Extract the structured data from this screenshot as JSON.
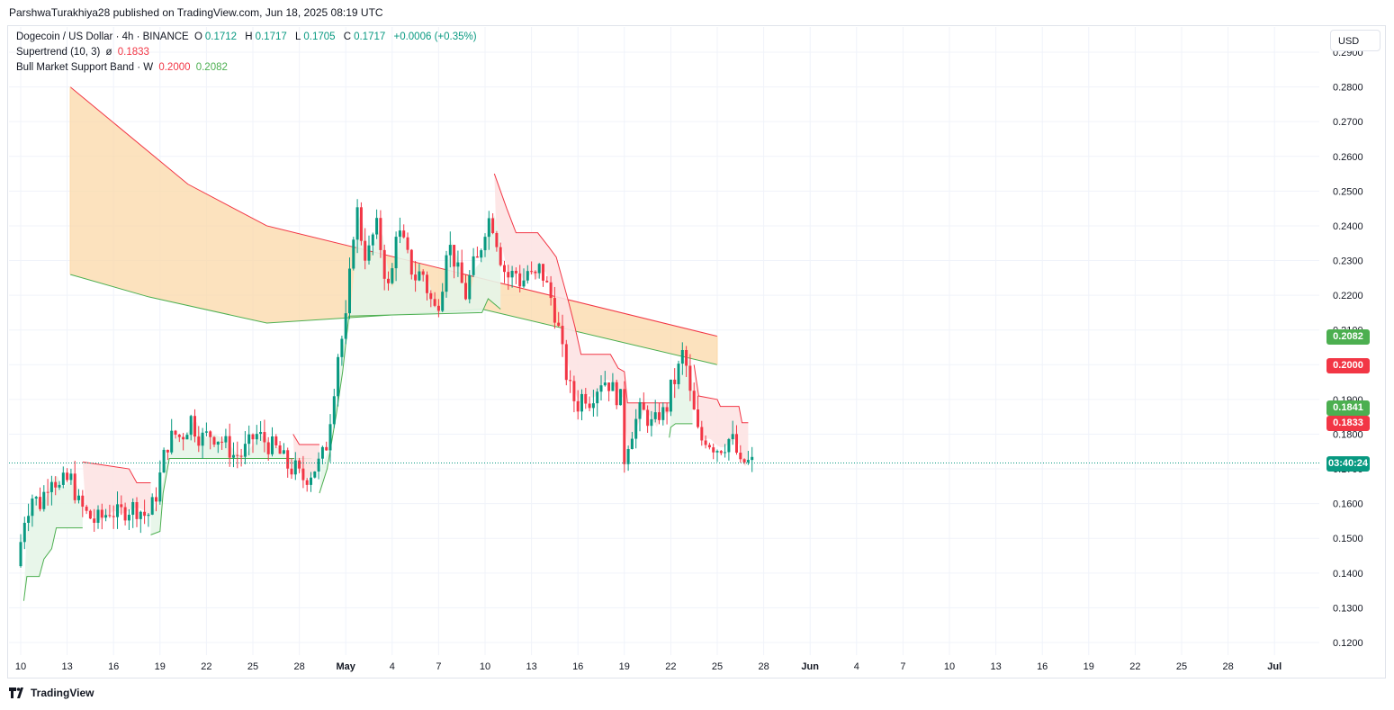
{
  "publisher": "ParshwaTurakhiya28 published on TradingView.com, Jun 18, 2025 08:19 UTC",
  "legend": {
    "symbol": "Dogecoin / US Dollar · 4h · BINANCE",
    "o_label": "O",
    "o": "0.1712",
    "h_label": "H",
    "h": "0.1717",
    "l_label": "L",
    "l": "0.1705",
    "c_label": "C",
    "c": "0.1717",
    "change": "+0.0006 (+0.35%)",
    "supertrend_name": "Supertrend (10, 3)",
    "supertrend_icon": "ø",
    "supertrend_value": "0.1833",
    "bmsb_name": "Bull Market Support Band · W",
    "bmsb_value1": "0.2000",
    "bmsb_value2": "0.2082"
  },
  "currency": "USD",
  "brand": "TradingView",
  "price_labels": {
    "bmsb_upper": "0.2082",
    "bmsb_lower": "0.2000",
    "supertrend_upper": "0.1841",
    "supertrend_lower": "0.1833",
    "countdown": "03:40:24"
  },
  "colors": {
    "up": "#089981",
    "down": "#f23645",
    "band_green": "#4caf50",
    "band_red": "#f23645",
    "band_fill": "#fbd8a8",
    "st_up_fill": "#e6f5e8",
    "st_down_fill": "#fde3e3"
  },
  "chart_data": {
    "type": "candlestick",
    "symbol": "Dogecoin / US Dollar",
    "interval": "4h",
    "exchange": "BINANCE",
    "last_price": 0.1717,
    "ylim": [
      0.115,
      0.293
    ],
    "y_ticks": [
      "0.1200",
      "0.1300",
      "0.1400",
      "0.1500",
      "0.1600",
      "0.1700",
      "0.1800",
      "0.1900",
      "0.2000",
      "0.2100",
      "0.2200",
      "0.2300",
      "0.2400",
      "0.2500",
      "0.2600",
      "0.2700",
      "0.2800",
      "0.2900"
    ],
    "x_ticks": [
      "10",
      "13",
      "16",
      "19",
      "22",
      "25",
      "28",
      "May",
      "4",
      "7",
      "10",
      "13",
      "16",
      "19",
      "22",
      "25",
      "28",
      "Jun",
      "4",
      "7",
      "10",
      "13",
      "16",
      "19",
      "22",
      "25",
      "28",
      "Jul"
    ],
    "bull_market_support_band": {
      "upper": [
        [
          0.28,
          3.2
        ],
        [
          0.252,
          10.8
        ],
        [
          0.24,
          15.9
        ],
        [
          0.2082,
          45.0
        ]
      ],
      "lower": [
        [
          0.226,
          3.2
        ],
        [
          0.2195,
          8.3
        ],
        [
          0.212,
          15.9
        ],
        [
          0.216,
          29.8
        ],
        [
          0.2,
          45.0
        ]
      ]
    },
    "price_path": [
      [
        0.0,
        0.142
      ],
      [
        0.5,
        0.156
      ],
      [
        1.0,
        0.162
      ],
      [
        1.5,
        0.16
      ],
      [
        2.0,
        0.166
      ],
      [
        2.3,
        0.169
      ],
      [
        2.7,
        0.164
      ],
      [
        3.0,
        0.166
      ],
      [
        3.5,
        0.167
      ],
      [
        4.0,
        0.16
      ],
      [
        4.5,
        0.157
      ],
      [
        5.0,
        0.155
      ],
      [
        5.5,
        0.156
      ],
      [
        6.0,
        0.158
      ],
      [
        6.5,
        0.157
      ],
      [
        7.0,
        0.158
      ],
      [
        7.5,
        0.159
      ],
      [
        8.0,
        0.158
      ],
      [
        8.4,
        0.156
      ],
      [
        8.8,
        0.16
      ],
      [
        9.1,
        0.164
      ],
      [
        9.4,
        0.172
      ],
      [
        9.8,
        0.178
      ],
      [
        10.2,
        0.18
      ],
      [
        10.6,
        0.179
      ],
      [
        11.0,
        0.182
      ],
      [
        11.3,
        0.185
      ],
      [
        11.6,
        0.18
      ],
      [
        12.0,
        0.179
      ],
      [
        12.5,
        0.18
      ],
      [
        13.0,
        0.179
      ],
      [
        13.5,
        0.177
      ],
      [
        14.0,
        0.174
      ],
      [
        14.5,
        0.174
      ],
      [
        15.0,
        0.177
      ],
      [
        15.4,
        0.18
      ],
      [
        15.8,
        0.179
      ],
      [
        16.2,
        0.177
      ],
      [
        16.7,
        0.176
      ],
      [
        17.2,
        0.173
      ],
      [
        17.6,
        0.17
      ],
      [
        18.0,
        0.17
      ],
      [
        18.4,
        0.167
      ],
      [
        18.8,
        0.168
      ],
      [
        19.2,
        0.17
      ],
      [
        19.6,
        0.172
      ],
      [
        20.0,
        0.177
      ],
      [
        20.4,
        0.19
      ],
      [
        20.8,
        0.205
      ],
      [
        21.2,
        0.21
      ],
      [
        21.6,
        0.23
      ],
      [
        21.9,
        0.247
      ],
      [
        22.2,
        0.238
      ],
      [
        22.6,
        0.23
      ],
      [
        23.0,
        0.237
      ],
      [
        23.3,
        0.24
      ],
      [
        23.7,
        0.228
      ],
      [
        24.1,
        0.22
      ],
      [
        24.5,
        0.239
      ],
      [
        24.9,
        0.236
      ],
      [
        25.3,
        0.23
      ],
      [
        25.7,
        0.225
      ],
      [
        26.2,
        0.227
      ],
      [
        26.6,
        0.22
      ],
      [
        27.0,
        0.216
      ],
      [
        27.4,
        0.22
      ],
      [
        27.8,
        0.236
      ],
      [
        28.2,
        0.231
      ],
      [
        28.6,
        0.225
      ],
      [
        29.0,
        0.22
      ],
      [
        29.4,
        0.228
      ],
      [
        29.8,
        0.23
      ],
      [
        30.2,
        0.239
      ],
      [
        30.6,
        0.243
      ],
      [
        31.0,
        0.236
      ],
      [
        31.4,
        0.228
      ],
      [
        31.8,
        0.225
      ],
      [
        32.2,
        0.227
      ],
      [
        32.6,
        0.223
      ],
      [
        33.0,
        0.227
      ],
      [
        33.4,
        0.224
      ],
      [
        33.8,
        0.228
      ],
      [
        34.2,
        0.223
      ],
      [
        34.6,
        0.218
      ],
      [
        35.0,
        0.21
      ],
      [
        35.4,
        0.199
      ],
      [
        35.8,
        0.192
      ],
      [
        36.2,
        0.188
      ],
      [
        36.6,
        0.192
      ],
      [
        37.0,
        0.19
      ],
      [
        37.4,
        0.193
      ],
      [
        37.8,
        0.196
      ],
      [
        38.2,
        0.195
      ],
      [
        38.6,
        0.192
      ],
      [
        39.0,
        0.19
      ],
      [
        39.2,
        0.172
      ],
      [
        39.5,
        0.178
      ],
      [
        39.9,
        0.183
      ],
      [
        40.3,
        0.187
      ],
      [
        40.7,
        0.185
      ],
      [
        41.1,
        0.182
      ],
      [
        41.5,
        0.186
      ],
      [
        41.9,
        0.186
      ],
      [
        42.3,
        0.194
      ],
      [
        42.7,
        0.197
      ],
      [
        42.9,
        0.204
      ],
      [
        43.2,
        0.201
      ],
      [
        43.5,
        0.191
      ],
      [
        43.8,
        0.185
      ],
      [
        44.1,
        0.178
      ],
      [
        44.5,
        0.179
      ],
      [
        44.9,
        0.177
      ],
      [
        45.3,
        0.176
      ],
      [
        45.7,
        0.177
      ],
      [
        46.1,
        0.179
      ],
      [
        46.4,
        0.177
      ],
      [
        46.7,
        0.17
      ],
      [
        47.0,
        0.172
      ],
      [
        47.3,
        0.1717
      ]
    ],
    "supertrend": {
      "current_value": 0.1833,
      "segments": [
        {
          "trend": "up",
          "points": [
            [
              0.2,
              0.132
            ],
            [
              0.4,
              0.139
            ],
            [
              1.2,
              0.139
            ],
            [
              1.5,
              0.144
            ],
            [
              2.0,
              0.147
            ],
            [
              2.3,
              0.153
            ],
            [
              4.0,
              0.153
            ]
          ]
        },
        {
          "trend": "down",
          "points": [
            [
              4.0,
              0.172
            ],
            [
              7.0,
              0.17
            ],
            [
              7.5,
              0.166
            ],
            [
              8.4,
              0.166
            ]
          ]
        },
        {
          "trend": "up",
          "points": [
            [
              8.4,
              0.151
            ],
            [
              9.0,
              0.152
            ],
            [
              9.2,
              0.163
            ],
            [
              9.6,
              0.173
            ],
            [
              14.0,
              0.173
            ],
            [
              17.5,
              0.173
            ],
            [
              18.8,
              0.173
            ]
          ]
        },
        {
          "trend": "down",
          "points": [
            [
              17.6,
              0.18
            ],
            [
              18.0,
              0.177
            ],
            [
              19.3,
              0.177
            ]
          ]
        },
        {
          "trend": "up",
          "points": [
            [
              19.3,
              0.163
            ],
            [
              19.8,
              0.17
            ],
            [
              20.4,
              0.186
            ],
            [
              20.8,
              0.198
            ],
            [
              21.2,
              0.214
            ],
            [
              29.8,
              0.215
            ],
            [
              30.2,
              0.219
            ],
            [
              31.0,
              0.216
            ]
          ]
        },
        {
          "trend": "down",
          "points": [
            [
              30.6,
              0.255
            ],
            [
              31.4,
              0.245
            ],
            [
              32.0,
              0.238
            ],
            [
              33.4,
              0.238
            ],
            [
              34.1,
              0.234
            ],
            [
              34.6,
              0.231
            ],
            [
              35.4,
              0.218
            ],
            [
              35.8,
              0.211
            ],
            [
              36.2,
              0.203
            ],
            [
              38.1,
              0.203
            ],
            [
              38.6,
              0.199
            ],
            [
              39.0,
              0.198
            ],
            [
              39.2,
              0.189
            ],
            [
              41.9,
              0.189
            ]
          ]
        },
        {
          "trend": "up",
          "points": [
            [
              41.9,
              0.179
            ],
            [
              42.0,
              0.182
            ],
            [
              42.3,
              0.183
            ],
            [
              43.4,
              0.183
            ]
          ]
        },
        {
          "trend": "down",
          "points": [
            [
              43.5,
              0.2
            ],
            [
              43.8,
              0.191
            ],
            [
              45.0,
              0.19
            ],
            [
              45.2,
              0.188
            ],
            [
              46.4,
              0.188
            ],
            [
              46.6,
              0.1833
            ],
            [
              47.0,
              0.1833
            ]
          ]
        }
      ]
    }
  }
}
